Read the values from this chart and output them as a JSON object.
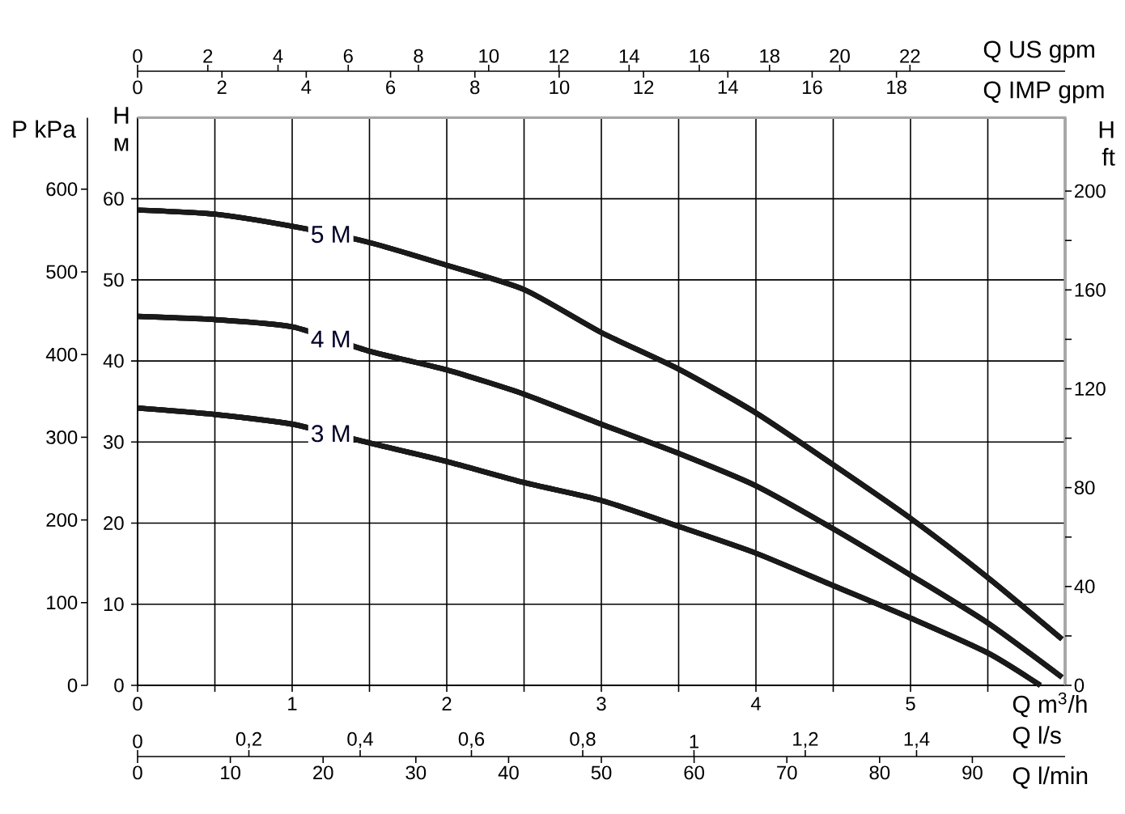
{
  "chart_data": [
    {
      "type": "line",
      "xlabel": "Q IMP gpm",
      "x2label": "Q US gpm",
      "tick_labels": "x",
      "xlim": [
        0,
        22.0
      ],
      "xticks": [
        0,
        2,
        4,
        6,
        8,
        10,
        12,
        14,
        16,
        18
      ],
      "x2lim": [
        0,
        26.42
      ],
      "x2ticks": [
        0,
        2,
        4,
        6,
        8,
        10,
        12,
        14,
        16,
        18,
        20,
        22
      ],
      "ylim": [
        0,
        70
      ],
      "series": [
        {
          "color": "#1a1a1a",
          "x": [
            0,
            1.83,
            3.67,
            5.5,
            7.33,
            9.17,
            11.0,
            12.83,
            14.66,
            16.5,
            18.33,
            20.16,
            21.92
          ],
          "values": [
            58.6,
            58.1,
            56.6,
            54.6,
            51.8,
            48.8,
            43.5,
            39.0,
            33.6,
            27.2,
            20.6,
            13.3,
            5.7
          ]
        },
        {
          "color": "#1a1a1a",
          "x": [
            0,
            1.83,
            3.67,
            5.5,
            7.33,
            9.17,
            11.0,
            12.83,
            14.66,
            16.5,
            18.33,
            20.16,
            21.92
          ],
          "values": [
            45.5,
            45.1,
            44.2,
            41.2,
            38.9,
            35.9,
            32.2,
            28.6,
            24.6,
            19.3,
            13.6,
            7.7,
            1.0
          ]
        },
        {
          "color": "#1a1a1a",
          "x": [
            0,
            1.83,
            3.67,
            5.5,
            7.33,
            9.17,
            11.0,
            12.83,
            14.66,
            16.5,
            18.33,
            20.16,
            21.41
          ],
          "values": [
            34.2,
            33.4,
            32.2,
            29.9,
            27.6,
            25.0,
            22.8,
            19.6,
            16.3,
            12.3,
            8.3,
            4.0,
            0
          ]
        }
      ]
    },
    {
      "type": "line",
      "xlabel": "Q m$^{3}$/h",
      "ylabel": "H м",
      "y2label": "H ft",
      "y3label": "P kPa",
      "xlim": [
        0,
        6
      ],
      "xticks": [
        0,
        {
          "value": 0.5,
          "label": null
        },
        1,
        {
          "value": 1.5,
          "label": null
        },
        2,
        {
          "value": 2.5,
          "label": null
        },
        3,
        {
          "value": 3.5,
          "label": null
        },
        4,
        {
          "value": 4.5,
          "label": null
        },
        5,
        {
          "value": 5.5,
          "label": null
        }
      ],
      "ylim": [
        0,
        70
      ],
      "yticks": [
        0,
        10,
        20,
        30,
        40,
        50,
        60
      ],
      "y2lim": [
        0,
        229.7
      ],
      "y2ticks": [
        0,
        {
          "value": 20,
          "label": null
        },
        40,
        {
          "value": 60,
          "label": null
        },
        80,
        {
          "value": 100,
          "label": null
        },
        120,
        {
          "value": 140,
          "label": null
        },
        160,
        {
          "value": 180,
          "label": null
        },
        200
      ],
      "y3lim": [
        0,
        686.5
      ],
      "y3ticks": [
        0,
        100,
        200,
        300,
        400,
        500,
        600
      ],
      "grid": true,
      "series": [
        {
          "name": "5 M",
          "color": "#1a1a1a",
          "x": [
            0,
            0.5,
            1,
            1.5,
            2,
            2.5,
            3,
            3.5,
            4,
            4.5,
            5,
            5.5,
            5.98
          ],
          "values": [
            58.6,
            58.1,
            56.6,
            54.6,
            51.8,
            48.8,
            43.5,
            39.0,
            33.6,
            27.2,
            20.6,
            13.3,
            5.7
          ]
        },
        {
          "name": "4 M",
          "color": "#1a1a1a",
          "x": [
            0,
            0.5,
            1,
            1.5,
            2,
            2.5,
            3,
            3.5,
            4,
            4.5,
            5,
            5.5,
            5.98
          ],
          "values": [
            45.5,
            45.1,
            44.2,
            41.2,
            38.9,
            35.9,
            32.2,
            28.6,
            24.6,
            19.3,
            13.6,
            7.7,
            1.0
          ]
        },
        {
          "name": "3 M",
          "color": "#1a1a1a",
          "x": [
            0,
            0.5,
            1,
            1.5,
            2,
            2.5,
            3,
            3.5,
            4,
            4.5,
            5,
            5.5,
            5.84
          ],
          "values": [
            34.2,
            33.4,
            32.2,
            29.9,
            27.6,
            25.0,
            22.8,
            19.6,
            16.3,
            12.3,
            8.3,
            4.0,
            0
          ]
        }
      ]
    },
    {
      "type": "line",
      "xlabel": "Q l/min",
      "x2label": "Q l/s",
      "tick_labels": "x",
      "xlim": [
        0,
        100
      ],
      "xticks": [
        0,
        10,
        20,
        30,
        40,
        50,
        60,
        70,
        80,
        90
      ],
      "x2lim": [
        0,
        1.667
      ],
      "x2ticks": [
        0,
        {
          "value": 0.2,
          "label": "0,2"
        },
        {
          "value": 0.4,
          "label": "0,4"
        },
        {
          "value": 0.6,
          "label": "0,6"
        },
        {
          "value": 0.8,
          "label": "0,8"
        },
        1,
        {
          "value": 1.2,
          "label": "1,2"
        },
        {
          "value": 1.4,
          "label": "1,4"
        }
      ],
      "ylim": [
        0,
        70
      ],
      "series": [
        {
          "color": "#1a1a1a",
          "x": [
            0,
            8.33,
            16.67,
            25,
            33.33,
            41.67,
            50,
            58.33,
            66.67,
            75,
            83.33,
            91.67,
            99.67
          ],
          "values": [
            58.6,
            58.1,
            56.6,
            54.6,
            51.8,
            48.8,
            43.5,
            39.0,
            33.6,
            27.2,
            20.6,
            13.3,
            5.7
          ]
        },
        {
          "color": "#1a1a1a",
          "x": [
            0,
            8.33,
            16.67,
            25,
            33.33,
            41.67,
            50,
            58.33,
            66.67,
            75,
            83.33,
            91.67,
            99.67
          ],
          "values": [
            45.5,
            45.1,
            44.2,
            41.2,
            38.9,
            35.9,
            32.2,
            28.6,
            24.6,
            19.3,
            13.6,
            7.7,
            1.0
          ]
        },
        {
          "color": "#1a1a1a",
          "x": [
            0,
            8.33,
            16.67,
            25,
            33.33,
            41.67,
            50,
            58.33,
            66.67,
            75,
            83.33,
            91.67,
            97.33
          ],
          "values": [
            34.2,
            33.4,
            32.2,
            29.9,
            27.6,
            25.0,
            22.8,
            19.6,
            16.3,
            12.3,
            8.3,
            4.0,
            0
          ]
        }
      ]
    }
  ]
}
